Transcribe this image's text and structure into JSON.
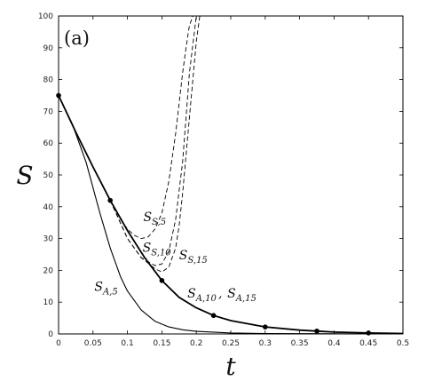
{
  "chart_data": {
    "type": "line",
    "panel_label": "(a)",
    "xlabel": "t",
    "ylabel": "S",
    "xlim": [
      0,
      0.5
    ],
    "ylim": [
      0,
      100
    ],
    "x_ticks": [
      "0",
      "0.05",
      "0.1",
      "0.15",
      "0.2",
      "0.25",
      "0.3",
      "0.35",
      "0.4",
      "0.45",
      "0.5"
    ],
    "y_ticks": [
      "0",
      "10",
      "20",
      "30",
      "40",
      "50",
      "60",
      "70",
      "80",
      "90",
      "100"
    ],
    "series": [
      {
        "name": "S_{A,10}, S_{A,15}",
        "style": "solid-thick",
        "x": [
          0,
          0.025,
          0.05,
          0.075,
          0.1,
          0.125,
          0.15,
          0.175,
          0.2,
          0.225,
          0.25,
          0.3,
          0.35,
          0.375,
          0.4,
          0.45,
          0.5
        ],
        "y": [
          75,
          63.5,
          52.5,
          42,
          32.5,
          24,
          16.8,
          11.5,
          8.2,
          5.8,
          4.2,
          2.2,
          1.2,
          0.9,
          0.6,
          0.3,
          0.15
        ],
        "markers_x": [
          0,
          0.075,
          0.15,
          0.225,
          0.3,
          0.375,
          0.45
        ],
        "markers_y": [
          75,
          42,
          16.8,
          5.8,
          2.2,
          0.9,
          0.3
        ]
      },
      {
        "name": "S_{A,5}",
        "style": "solid-thin",
        "x": [
          0,
          0.02,
          0.04,
          0.06,
          0.075,
          0.09,
          0.1,
          0.12,
          0.14,
          0.16,
          0.18,
          0.2,
          0.25,
          0.3,
          0.4,
          0.5
        ],
        "y": [
          75,
          66,
          54,
          38,
          27,
          18,
          13.5,
          7.5,
          4,
          2.2,
          1.3,
          0.8,
          0.3,
          0.15,
          0.05,
          0
        ],
        "markers_x": [],
        "markers_y": []
      },
      {
        "name": "S_{S,5}",
        "style": "dashed",
        "x": [
          0.075,
          0.09,
          0.1,
          0.11,
          0.12,
          0.13,
          0.14,
          0.15,
          0.16,
          0.17,
          0.18,
          0.185,
          0.19,
          0.195
        ],
        "y": [
          42,
          36,
          33,
          31,
          30,
          30.5,
          33,
          38,
          48,
          63,
          82,
          90,
          97,
          100
        ],
        "markers_x": [],
        "markers_y": []
      },
      {
        "name": "S_{S,10}",
        "style": "dashed",
        "x": [
          0.075,
          0.1,
          0.12,
          0.14,
          0.15,
          0.16,
          0.17,
          0.18,
          0.185,
          0.19,
          0.2
        ],
        "y": [
          42,
          30,
          24,
          21.5,
          22,
          26,
          36,
          54,
          68,
          82,
          100
        ],
        "markers_x": [],
        "markers_y": []
      },
      {
        "name": "S_{S,15}",
        "style": "dashed",
        "x": [
          0.075,
          0.1,
          0.12,
          0.14,
          0.15,
          0.16,
          0.17,
          0.175,
          0.18,
          0.19,
          0.2,
          0.205
        ],
        "y": [
          42,
          30,
          24,
          20.5,
          19.5,
          21,
          27,
          34,
          44,
          68,
          92,
          100
        ],
        "markers_x": [],
        "markers_y": []
      }
    ],
    "annotations": [
      {
        "main": "S",
        "sub": "S,5",
        "x": 0.123,
        "y": 35.5
      },
      {
        "main": "S",
        "sub": "S,10",
        "x": 0.122,
        "y": 25.8
      },
      {
        "main": "S",
        "sub": "S,15",
        "x": 0.175,
        "y": 23.5
      },
      {
        "main": "S",
        "sub": "A,5",
        "x": 0.052,
        "y": 13.5
      },
      {
        "main": "S",
        "sub": "A,10",
        "x": 0.187,
        "y": 11.5
      },
      {
        "main": "",
        "sub": ",",
        "x": 0.232,
        "y": 11.5
      },
      {
        "main": "S",
        "sub": "A,15",
        "x": 0.245,
        "y": 11.5
      }
    ]
  }
}
